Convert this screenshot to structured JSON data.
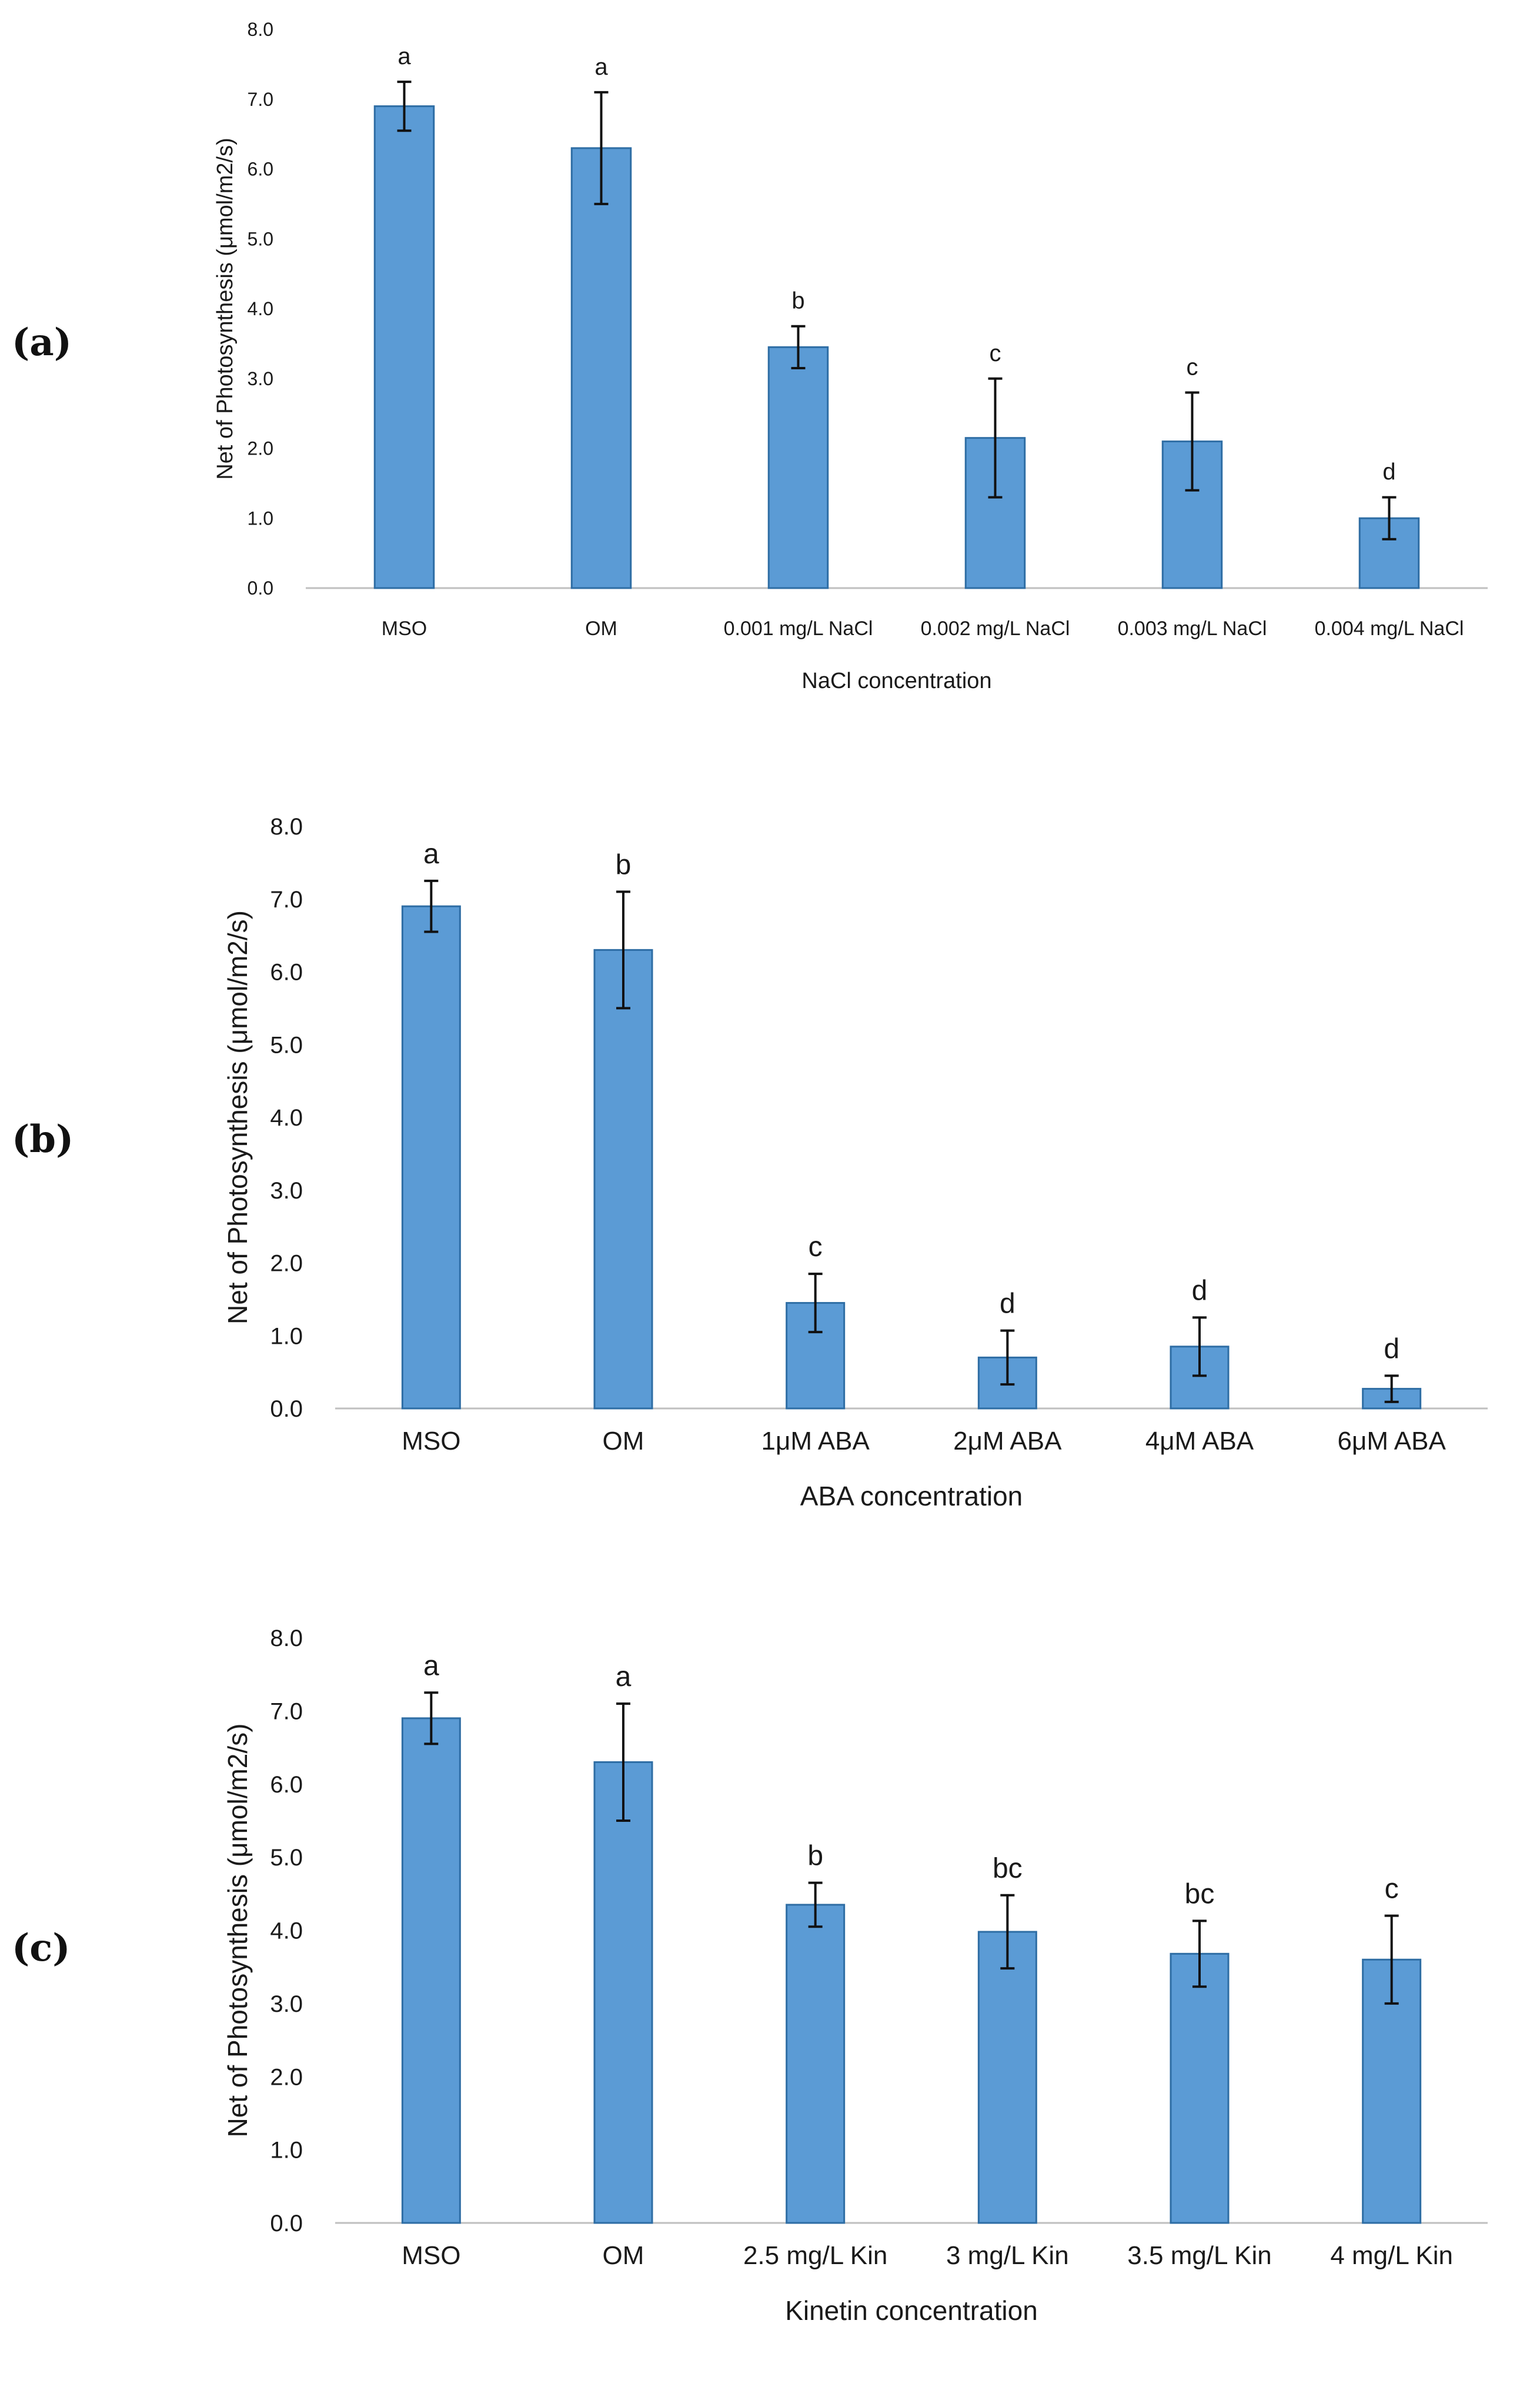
{
  "colors": {
    "bar": "#5b9bd5",
    "bar_edge": "#2e6da4",
    "axis": "#bfbfbf",
    "text": "#1a1a1a"
  },
  "chart_data": [
    {
      "panel_label": "(a)",
      "type": "bar",
      "title": "",
      "xlabel": "NaCl concentration",
      "ylabel": "Net of Photosynthesis (μmol/m2/s)",
      "ylim": [
        0,
        8
      ],
      "yticks": [
        "0.0",
        "1.0",
        "2.0",
        "3.0",
        "4.0",
        "5.0",
        "6.0",
        "7.0",
        "8.0"
      ],
      "grid": false,
      "categories": [
        "MSO",
        "OM",
        "0.001 mg/L NaCl",
        "0.002 mg/L  NaCl",
        "0.003 mg/L  NaCl",
        "0.004 mg/L  NaCl"
      ],
      "values": [
        6.9,
        6.3,
        3.45,
        2.15,
        2.1,
        1.0
      ],
      "errors": [
        0.35,
        0.8,
        0.3,
        0.85,
        0.7,
        0.3
      ],
      "letters": [
        "a",
        "a",
        "b",
        "c",
        "c",
        "d"
      ]
    },
    {
      "panel_label": "(b)",
      "type": "bar",
      "title": "",
      "xlabel": "ABA concentration",
      "ylabel": "Net of Photosynthesis (μmol/m2/s)",
      "ylim": [
        0,
        8
      ],
      "yticks": [
        "0.0",
        "1.0",
        "2.0",
        "3.0",
        "4.0",
        "5.0",
        "6.0",
        "7.0",
        "8.0"
      ],
      "grid": false,
      "categories": [
        "MSO",
        "OM",
        "1μM ABA",
        "2μM ABA",
        "4μM ABA",
        "6μM ABA"
      ],
      "values": [
        6.9,
        6.3,
        1.45,
        0.7,
        0.85,
        0.27
      ],
      "errors": [
        0.35,
        0.8,
        0.4,
        0.37,
        0.4,
        0.18
      ],
      "letters": [
        "a",
        "b",
        "c",
        "d",
        "d",
        "d"
      ]
    },
    {
      "panel_label": "(c)",
      "type": "bar",
      "title": "",
      "xlabel": "Kinetin concentration",
      "ylabel": "Net of Photosynthesis (μmol/m2/s)",
      "ylim": [
        0,
        8
      ],
      "yticks": [
        "0.0",
        "1.0",
        "2.0",
        "3.0",
        "4.0",
        "5.0",
        "6.0",
        "7.0",
        "8.0"
      ],
      "grid": false,
      "categories": [
        "MSO",
        "OM",
        "2.5 mg/L Kin",
        "3 mg/L Kin",
        "3.5 mg/L Kin",
        "4 mg/L Kin"
      ],
      "values": [
        6.9,
        6.3,
        4.35,
        3.98,
        3.68,
        3.6
      ],
      "errors": [
        0.35,
        0.8,
        0.3,
        0.5,
        0.45,
        0.6
      ],
      "letters": [
        "a",
        "a",
        "b",
        "bc",
        "bc",
        "c"
      ]
    }
  ]
}
